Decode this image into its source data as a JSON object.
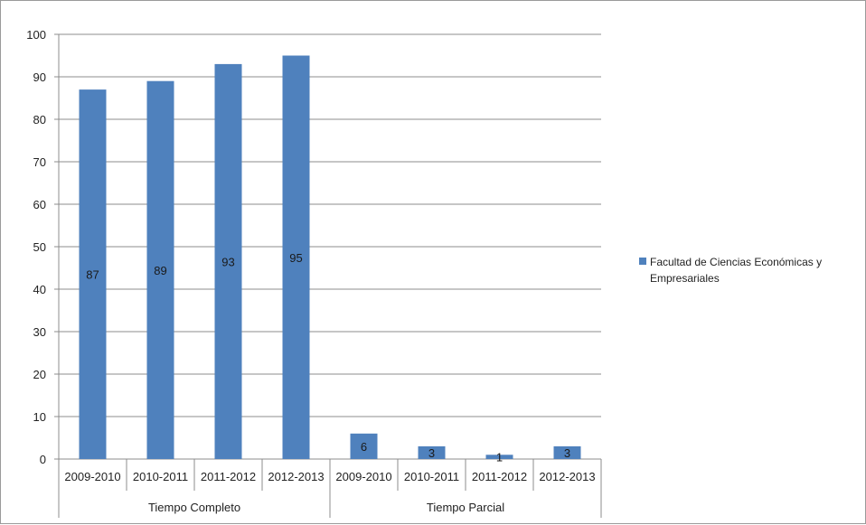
{
  "chart_data": {
    "type": "bar",
    "ylim": [
      0,
      100
    ],
    "yticks": [
      0,
      10,
      20,
      30,
      40,
      50,
      60,
      70,
      80,
      90,
      100
    ],
    "grid": true,
    "legend_position": "right",
    "groups": [
      {
        "label": "Tiempo Completo",
        "categories": [
          "2009-2010",
          "2010-2011",
          "2011-2012",
          "2012-2013"
        ]
      },
      {
        "label": "Tiempo Parcial",
        "categories": [
          "2009-2010",
          "2010-2011",
          "2011-2012",
          "2012-2013"
        ]
      }
    ],
    "categories": [
      "2009-2010",
      "2010-2011",
      "2011-2012",
      "2012-2013",
      "2009-2010",
      "2010-2011",
      "2011-2012",
      "2012-2013"
    ],
    "series": [
      {
        "name": "Facultad de Ciencias Económicas y Empresariales",
        "color": "#4f81bd",
        "values": [
          87,
          89,
          93,
          95,
          6,
          3,
          1,
          3
        ]
      }
    ]
  }
}
